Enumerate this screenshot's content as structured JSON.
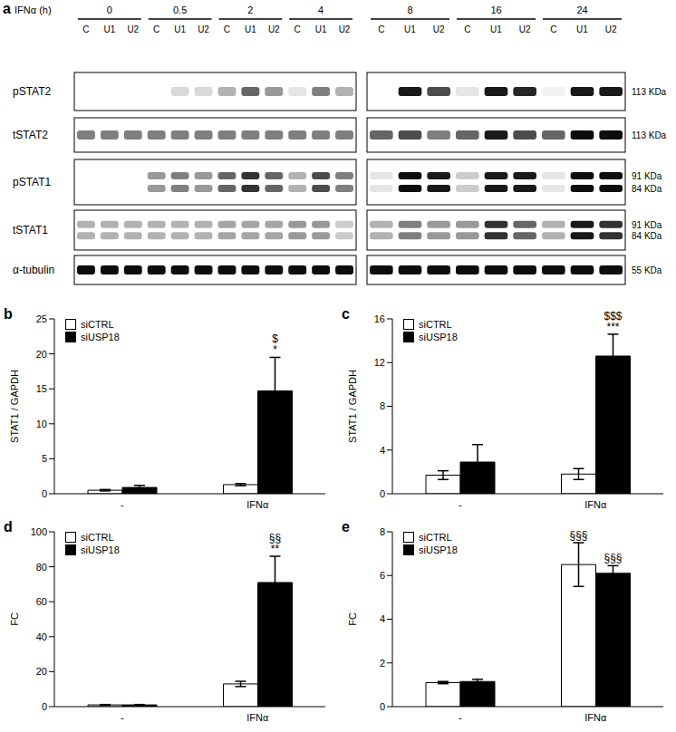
{
  "panel_a": {
    "panel": "a",
    "treatment_label": "IFNα (h)",
    "lanes": [
      "C",
      "U1",
      "U2"
    ],
    "blocks": [
      {
        "times": [
          "0",
          "0.5",
          "2",
          "4"
        ]
      },
      {
        "times": [
          "8",
          "16",
          "24"
        ]
      }
    ],
    "rows": [
      {
        "name": "pSTAT2",
        "mw": [
          "113 KDa"
        ],
        "intensity": [
          [
            0,
            0,
            0,
            0,
            0.15,
            0.15,
            0.3,
            0.6,
            0.4,
            0.1,
            0.5,
            0.3
          ],
          [
            0,
            0.9,
            0.7,
            0.1,
            0.9,
            0.85,
            0.05,
            0.9,
            0.9
          ]
        ]
      },
      {
        "name": "tSTAT2",
        "mw": [
          "113 KDa"
        ],
        "intensity": [
          [
            0.5,
            0.5,
            0.5,
            0.5,
            0.5,
            0.5,
            0.5,
            0.5,
            0.5,
            0.5,
            0.5,
            0.5
          ],
          [
            0.6,
            0.7,
            0.5,
            0.6,
            0.9,
            0.7,
            0.6,
            0.95,
            0.95
          ]
        ]
      },
      {
        "name": "pSTAT1",
        "mw": [
          "91 KDa",
          "84 KDa"
        ],
        "intensity": [
          [
            0,
            0,
            0,
            0.4,
            0.5,
            0.4,
            0.6,
            0.8,
            0.6,
            0.3,
            0.7,
            0.5
          ],
          [
            0.1,
            0.95,
            0.9,
            0.2,
            0.9,
            0.9,
            0.1,
            0.95,
            0.95
          ]
        ]
      },
      {
        "name": "tSTAT1",
        "mw": [
          "91 KDa",
          "84 KDa"
        ],
        "intensity": [
          [
            0.3,
            0.3,
            0.3,
            0.3,
            0.3,
            0.3,
            0.35,
            0.35,
            0.35,
            0.4,
            0.4,
            0.2
          ],
          [
            0.3,
            0.5,
            0.4,
            0.4,
            0.8,
            0.6,
            0.3,
            0.9,
            0.8
          ]
        ]
      },
      {
        "name": "α-tubulin",
        "mw": [
          "55 KDa"
        ],
        "intensity": [
          [
            0.95,
            0.95,
            0.95,
            0.95,
            0.95,
            0.95,
            0.95,
            0.95,
            0.95,
            0.95,
            0.95,
            0.95
          ],
          [
            0.95,
            0.95,
            0.95,
            0.95,
            0.95,
            0.95,
            0.95,
            0.95,
            0.95
          ]
        ]
      }
    ]
  },
  "chart_data": [
    {
      "type": "bar",
      "panel": "b",
      "y_label": "STAT1 / GAPDH",
      "categories": [
        "-",
        "IFNα"
      ],
      "series": [
        {
          "name": "siCTRL",
          "color": "#ffffff",
          "values": [
            0.5,
            1.3
          ],
          "errors": [
            0.1,
            0.15
          ]
        },
        {
          "name": "siUSP18",
          "color": "#000000",
          "values": [
            0.9,
            14.7
          ],
          "errors": [
            0.3,
            4.8
          ]
        }
      ],
      "ylim": [
        0,
        25
      ],
      "yticks": [
        0,
        5,
        10,
        15,
        20,
        25
      ],
      "legend": "upper left",
      "annotations": [
        {
          "series": "siUSP18",
          "category": "IFNα",
          "text": [
            "$",
            "*"
          ]
        }
      ]
    },
    {
      "type": "bar",
      "panel": "c",
      "y_label": "STAT1 / GAPDH",
      "categories": [
        "-",
        "IFNα"
      ],
      "series": [
        {
          "name": "siCTRL",
          "color": "#ffffff",
          "values": [
            1.7,
            1.8
          ],
          "errors": [
            0.4,
            0.5
          ]
        },
        {
          "name": "siUSP18",
          "color": "#000000",
          "values": [
            2.9,
            12.6
          ],
          "errors": [
            1.6,
            2.0
          ]
        }
      ],
      "ylim": [
        0,
        16
      ],
      "yticks": [
        0,
        4,
        8,
        12,
        16
      ],
      "legend": "upper left",
      "annotations": [
        {
          "series": "siUSP18",
          "category": "IFNα",
          "text": [
            "$$$",
            "***"
          ]
        }
      ]
    },
    {
      "type": "bar",
      "panel": "d",
      "y_label": "FC",
      "categories": [
        "-",
        "IFNα"
      ],
      "series": [
        {
          "name": "siCTRL",
          "color": "#ffffff",
          "values": [
            1,
            13
          ],
          "errors": [
            0.2,
            1.5
          ]
        },
        {
          "name": "siUSP18",
          "color": "#000000",
          "values": [
            1,
            71
          ],
          "errors": [
            0.2,
            15
          ]
        }
      ],
      "ylim": [
        0,
        100
      ],
      "yticks": [
        0,
        20,
        40,
        60,
        80,
        100
      ],
      "legend": "upper left",
      "annotations": [
        {
          "series": "siUSP18",
          "category": "IFNα",
          "text": [
            "§§",
            "**"
          ]
        }
      ]
    },
    {
      "type": "bar",
      "panel": "e",
      "y_label": "FC",
      "categories": [
        "-",
        "IFNα"
      ],
      "series": [
        {
          "name": "siCTRL",
          "color": "#ffffff",
          "values": [
            1.1,
            6.5
          ],
          "errors": [
            0.05,
            1.0
          ]
        },
        {
          "name": "siUSP18",
          "color": "#000000",
          "values": [
            1.15,
            6.1
          ],
          "errors": [
            0.1,
            0.35
          ]
        }
      ],
      "ylim": [
        0,
        8
      ],
      "yticks": [
        0,
        2,
        4,
        6,
        8
      ],
      "legend": "upper left",
      "annotations": [
        {
          "series": "siCTRL",
          "category": "IFNα",
          "text": [
            "§§§"
          ]
        },
        {
          "series": "siUSP18",
          "category": "IFNα",
          "text": [
            "§§§"
          ]
        }
      ]
    }
  ]
}
